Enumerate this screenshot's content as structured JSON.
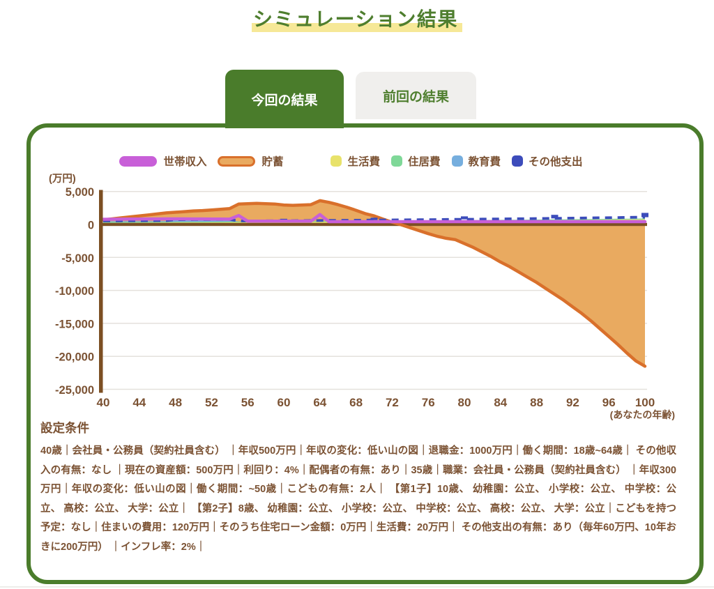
{
  "page": {
    "title": "シミュレーション結果"
  },
  "tabs": [
    {
      "label": "今回の結果",
      "active": true
    },
    {
      "label": "前回の結果",
      "active": false
    }
  ],
  "legend": [
    {
      "key": "household-income",
      "label": "世帯収入",
      "swatch": "pill",
      "color": "#c85fd8"
    },
    {
      "key": "savings",
      "label": "貯蓄",
      "swatch": "pill",
      "color": "#e9aa60",
      "border": "#d9702b"
    },
    {
      "key": "living-expenses",
      "label": "生活費",
      "swatch": "square",
      "color": "#e8e26a",
      "group_gap": true
    },
    {
      "key": "housing-expenses",
      "label": "住居費",
      "swatch": "square",
      "color": "#7fd898"
    },
    {
      "key": "education-expenses",
      "label": "教育費",
      "swatch": "square",
      "color": "#76aede"
    },
    {
      "key": "other-expenses",
      "label": "その他支出",
      "swatch": "square",
      "color": "#3c4cbb"
    }
  ],
  "chart_data": {
    "type": "area",
    "unit_label": "(万円)",
    "x_axis_note": "(あなたの年齢)",
    "x_ticks": [
      40,
      44,
      48,
      52,
      56,
      60,
      64,
      68,
      72,
      76,
      80,
      84,
      88,
      92,
      96,
      100
    ],
    "y_ticks": [
      5000,
      0,
      -5000,
      -10000,
      -15000,
      -20000,
      -25000
    ],
    "y_tick_labels": [
      "5,000",
      "0",
      "-5,000",
      "-10,000",
      "-15,000",
      "-20,000",
      "-25,000"
    ],
    "y_gridlines": [
      5000,
      -5000,
      -10000,
      -15000,
      -20000,
      -25000
    ],
    "ylim": [
      -25000,
      5000
    ],
    "xlim": [
      40,
      100
    ],
    "grid": true,
    "legend_position": "top",
    "colors": {
      "grid": "#e4e1dc",
      "axis": "#7c4f23",
      "savings_fill": "#e9aa60",
      "savings_stroke": "#d9702b",
      "income": "#c85fd8",
      "living": "#e8e26a",
      "housing": "#7fd898",
      "education": "#76aede",
      "other": "#3c4cbb",
      "text": "#7b5233"
    },
    "ages": [
      40,
      41,
      42,
      43,
      44,
      45,
      46,
      47,
      48,
      49,
      50,
      51,
      52,
      53,
      54,
      55,
      56,
      57,
      58,
      59,
      60,
      61,
      62,
      63,
      64,
      65,
      66,
      67,
      68,
      69,
      70,
      71,
      72,
      73,
      74,
      75,
      76,
      77,
      78,
      79,
      80,
      81,
      82,
      83,
      84,
      85,
      86,
      87,
      88,
      89,
      90,
      91,
      92,
      93,
      94,
      95,
      96,
      97,
      98,
      99,
      100
    ],
    "series": [
      {
        "name": "世帯収入",
        "type": "line",
        "color": "#c85fd8",
        "values": [
          780,
          790,
          800,
          810,
          820,
          830,
          840,
          850,
          850,
          850,
          840,
          830,
          820,
          810,
          800,
          1350,
          500,
          500,
          500,
          500,
          500,
          500,
          500,
          500,
          1500,
          420,
          420,
          420,
          420,
          420,
          420,
          420,
          420,
          420,
          420,
          420,
          420,
          420,
          420,
          420,
          420,
          420,
          420,
          420,
          420,
          420,
          420,
          420,
          420,
          420,
          420,
          420,
          420,
          420,
          420,
          420,
          420,
          420,
          420,
          420,
          420
        ]
      },
      {
        "name": "貯蓄",
        "type": "area",
        "color_fill": "#e9aa60",
        "color_stroke": "#d9702b",
        "values": [
          700,
          850,
          1000,
          1150,
          1300,
          1450,
          1600,
          1750,
          1850,
          1950,
          2050,
          2100,
          2200,
          2300,
          2400,
          3100,
          3150,
          3200,
          3150,
          3100,
          2950,
          2900,
          2950,
          3000,
          3600,
          3350,
          3000,
          2600,
          2150,
          1650,
          1300,
          800,
          350,
          -50,
          -500,
          -950,
          -1400,
          -1800,
          -2100,
          -2300,
          -2900,
          -3500,
          -4200,
          -4900,
          -5700,
          -6400,
          -7200,
          -8000,
          -8800,
          -9700,
          -10600,
          -11500,
          -12500,
          -13500,
          -14600,
          -15800,
          -17000,
          -18200,
          -19500,
          -20700,
          -21500
        ]
      },
      {
        "name": "生活費",
        "type": "stacked-band",
        "color": "#e8e26a",
        "values": [
          240,
          245,
          250,
          255,
          260,
          265,
          270,
          276,
          281,
          287,
          293,
          298,
          304,
          310,
          317,
          323,
          329,
          336,
          343,
          349,
          357,
          364,
          371,
          379,
          386,
          394,
          402,
          410,
          418,
          426,
          435,
          444,
          452,
          461,
          471,
          480,
          490,
          499,
          509,
          520,
          530,
          540,
          551,
          562,
          573,
          585,
          597,
          608,
          621,
          633,
          646,
          659,
          672,
          685,
          699,
          713,
          727,
          742,
          757,
          772,
          787
        ]
      },
      {
        "name": "住居費",
        "type": "stacked-band",
        "color": "#7fd898",
        "values": [
          120,
          120,
          120,
          120,
          120,
          120,
          120,
          120,
          120,
          120,
          120,
          120,
          120,
          120,
          120,
          120,
          120,
          120,
          120,
          120,
          120,
          120,
          120,
          120,
          120,
          120,
          120,
          120,
          120,
          120,
          120,
          120,
          120,
          120,
          120,
          120,
          120,
          120,
          120,
          120,
          120,
          120,
          120,
          120,
          120,
          120,
          120,
          120,
          120,
          120,
          120,
          120,
          120,
          120,
          120,
          120,
          120,
          120,
          120,
          120,
          120
        ]
      },
      {
        "name": "教育費",
        "type": "stacked-band",
        "color": "#76aede",
        "values": [
          120,
          120,
          120,
          120,
          120,
          120,
          120,
          120,
          260,
          260,
          260,
          260,
          260,
          260,
          260,
          0,
          0,
          0,
          0,
          0,
          0,
          0,
          0,
          0,
          0,
          0,
          0,
          0,
          0,
          0,
          0,
          0,
          0,
          0,
          0,
          0,
          0,
          0,
          0,
          0,
          0,
          0,
          0,
          0,
          0,
          0,
          0,
          0,
          0,
          0,
          0,
          0,
          0,
          0,
          0,
          0,
          0,
          0,
          0,
          0,
          0
        ]
      },
      {
        "name": "その他支出",
        "type": "stacked-dashed-top",
        "color": "#3c4cbb",
        "values": [
          60,
          61,
          62,
          64,
          65,
          66,
          68,
          69,
          70,
          72,
          73,
          75,
          76,
          78,
          79,
          81,
          82,
          84,
          86,
          87,
          89,
          91,
          93,
          95,
          96,
          98,
          100,
          102,
          104,
          107,
          109,
          111,
          113,
          115,
          118,
          120,
          122,
          125,
          127,
          130,
          132,
          135,
          138,
          141,
          143,
          146,
          149,
          152,
          155,
          158,
          161,
          165,
          168,
          171,
          175,
          178,
          182,
          185,
          189,
          193,
          197
        ],
        "decade_spikes": {
          "ages": [
            50,
            60,
            70,
            80,
            90,
            100
          ],
          "extra": [
            240,
            295,
            360,
            440,
            535,
            655
          ]
        }
      }
    ]
  },
  "settings": {
    "heading": "設定条件",
    "text": "40歳｜会社員・公務員（契約社員含む） ｜年収500万円｜年収の変化：低い山の図｜退職金：1000万円｜働く期間：18歳~64歳｜ その他収入の有無：なし ｜現在の資産額：500万円｜利回り：4%｜配偶者の有無：あり｜35歳｜職業：会社員・公務員（契約社員含む） ｜年収300万円｜年収の変化：低い山の図｜働く期間：~50歳｜こどもの有無：2人｜ 【第1子】10歳、 幼稚園：公立、 小学校：公立、 中学校：公立、 高校：公立、 大学：公立｜ 【第2子】8歳、 幼稚園：公立、 小学校：公立、 中学校：公立、 高校：公立、 大学：公立｜こどもを持つ予定：なし｜住まいの費用：120万円｜そのうち住宅ローン金額：0万円｜生活費：20万円｜ その他支出の有無：あり（毎年60万円、10年おきに200万円） ｜インフレ率：2%｜"
  }
}
